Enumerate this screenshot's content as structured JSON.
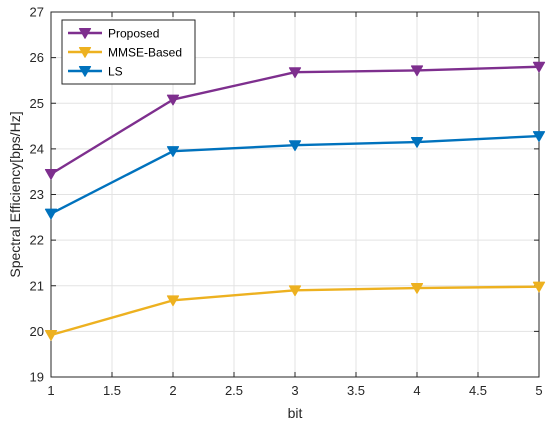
{
  "chart_data": {
    "type": "line",
    "title": "",
    "xlabel": "bit",
    "ylabel": "Spectral Efficiency[bps/Hz]",
    "xlim": [
      1,
      5
    ],
    "ylim": [
      19,
      27
    ],
    "xticks": [
      1,
      1.5,
      2,
      2.5,
      3,
      3.5,
      4,
      4.5,
      5
    ],
    "xtick_labels": [
      "1",
      "1.5",
      "2",
      "2.5",
      "3",
      "3.5",
      "4",
      "4.5",
      "5"
    ],
    "yticks": [
      19,
      20,
      21,
      22,
      23,
      24,
      25,
      26,
      27
    ],
    "ytick_labels": [
      "19",
      "20",
      "21",
      "22",
      "23",
      "24",
      "25",
      "26",
      "27"
    ],
    "grid": true,
    "legend_position": "top-left",
    "x": [
      1,
      2,
      3,
      4,
      5
    ],
    "series": [
      {
        "name": "Proposed",
        "values": [
          23.45,
          25.08,
          25.68,
          25.72,
          25.8
        ],
        "color": "#7E2F8E",
        "marker": "triangle-down"
      },
      {
        "name": "MMSE-Based",
        "values": [
          19.92,
          20.68,
          20.9,
          20.95,
          20.98
        ],
        "color": "#EDB120",
        "marker": "triangle-down"
      },
      {
        "name": "LS",
        "values": [
          22.58,
          23.95,
          24.08,
          24.15,
          24.28
        ],
        "color": "#0072BD",
        "marker": "triangle-down"
      }
    ]
  }
}
